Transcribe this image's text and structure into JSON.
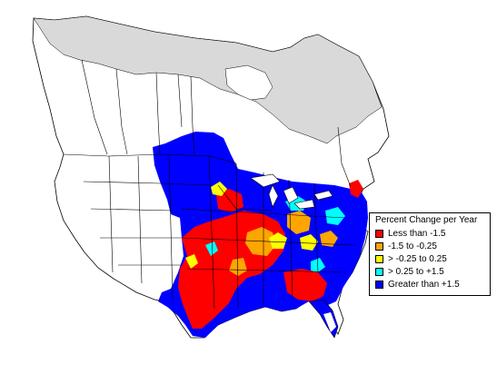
{
  "legend": {
    "title": "Percent Change per Year",
    "items": [
      {
        "label": "Less than -1.5",
        "color": "#ff0000"
      },
      {
        "label": "-1.5 to -0.25",
        "color": "#ffa500"
      },
      {
        "label": "> -0.25 to 0.25",
        "color": "#ffff00"
      },
      {
        "label": "> 0.25 to +1.5",
        "color": "#00ffff"
      },
      {
        "label": "Greater than +1.5",
        "color": "#0000ff"
      }
    ]
  },
  "colors": {
    "land": "#ffffff",
    "outside_range": "#d9d9d9",
    "boundary": "#000000"
  }
}
